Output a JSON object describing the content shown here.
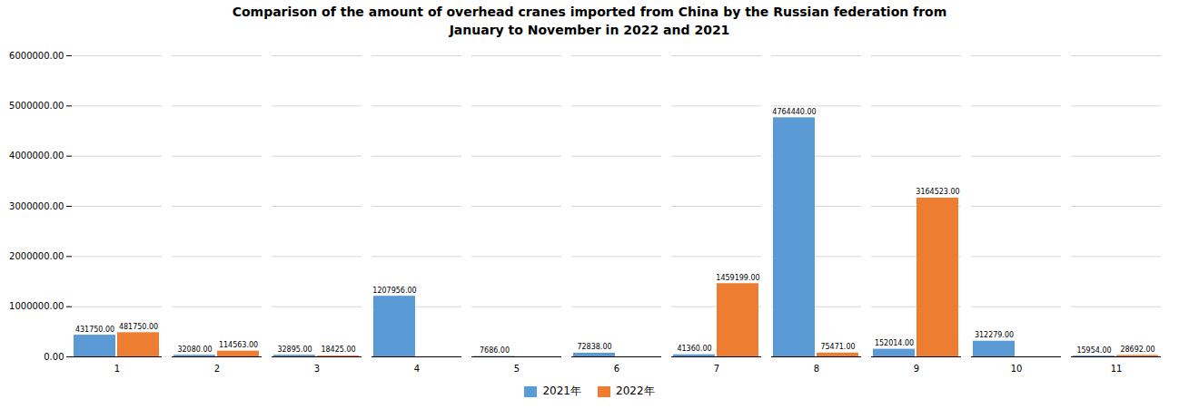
{
  "chart_data": {
    "type": "bar",
    "title": "Comparison of the amount of overhead cranes imported from China by the Russian federation from\nJanuary to November in 2022 and 2021",
    "categories": [
      "1",
      "2",
      "3",
      "4",
      "5",
      "6",
      "7",
      "8",
      "9",
      "10",
      "11"
    ],
    "series": [
      {
        "name": "2021年",
        "color": "#5b9bd5",
        "values": [
          431750.0,
          32080.0,
          32895.0,
          1207956.0,
          7686.0,
          72838.0,
          41360.0,
          4764440.0,
          152014.0,
          312279.0,
          15954.0
        ],
        "value_labels": [
          "431750.00",
          "32080.00",
          "32895.00",
          "1207956.00",
          "7686.00",
          "72838.00",
          "41360.00",
          "4764440.00",
          "152014.00",
          "312279.00",
          "15954.00"
        ]
      },
      {
        "name": "2022年",
        "color": "#ed7d31",
        "values": [
          481750.0,
          114563.0,
          18425.0,
          0,
          0,
          0,
          1459199.0,
          75471.0,
          3164523.0,
          0,
          28692.0
        ],
        "value_labels": [
          "481750.00",
          "114563.00",
          "18425.00",
          null,
          null,
          null,
          "1459199.00",
          "75471.00",
          "3164523.00",
          null,
          "28692.00"
        ]
      }
    ],
    "ylim": [
      0,
      6000000
    ],
    "yticks": [
      {
        "value": 0,
        "label": "0.00"
      },
      {
        "value": 1000000,
        "label": "1000000.00"
      },
      {
        "value": 2000000,
        "label": "2000000.00"
      },
      {
        "value": 3000000,
        "label": "3000000.00"
      },
      {
        "value": 4000000,
        "label": "4000000.00"
      },
      {
        "value": 5000000,
        "label": "5000000.00"
      },
      {
        "value": 6000000,
        "label": "6000000.00"
      }
    ],
    "grid": true,
    "legend": "bottom",
    "data_labels": true
  }
}
